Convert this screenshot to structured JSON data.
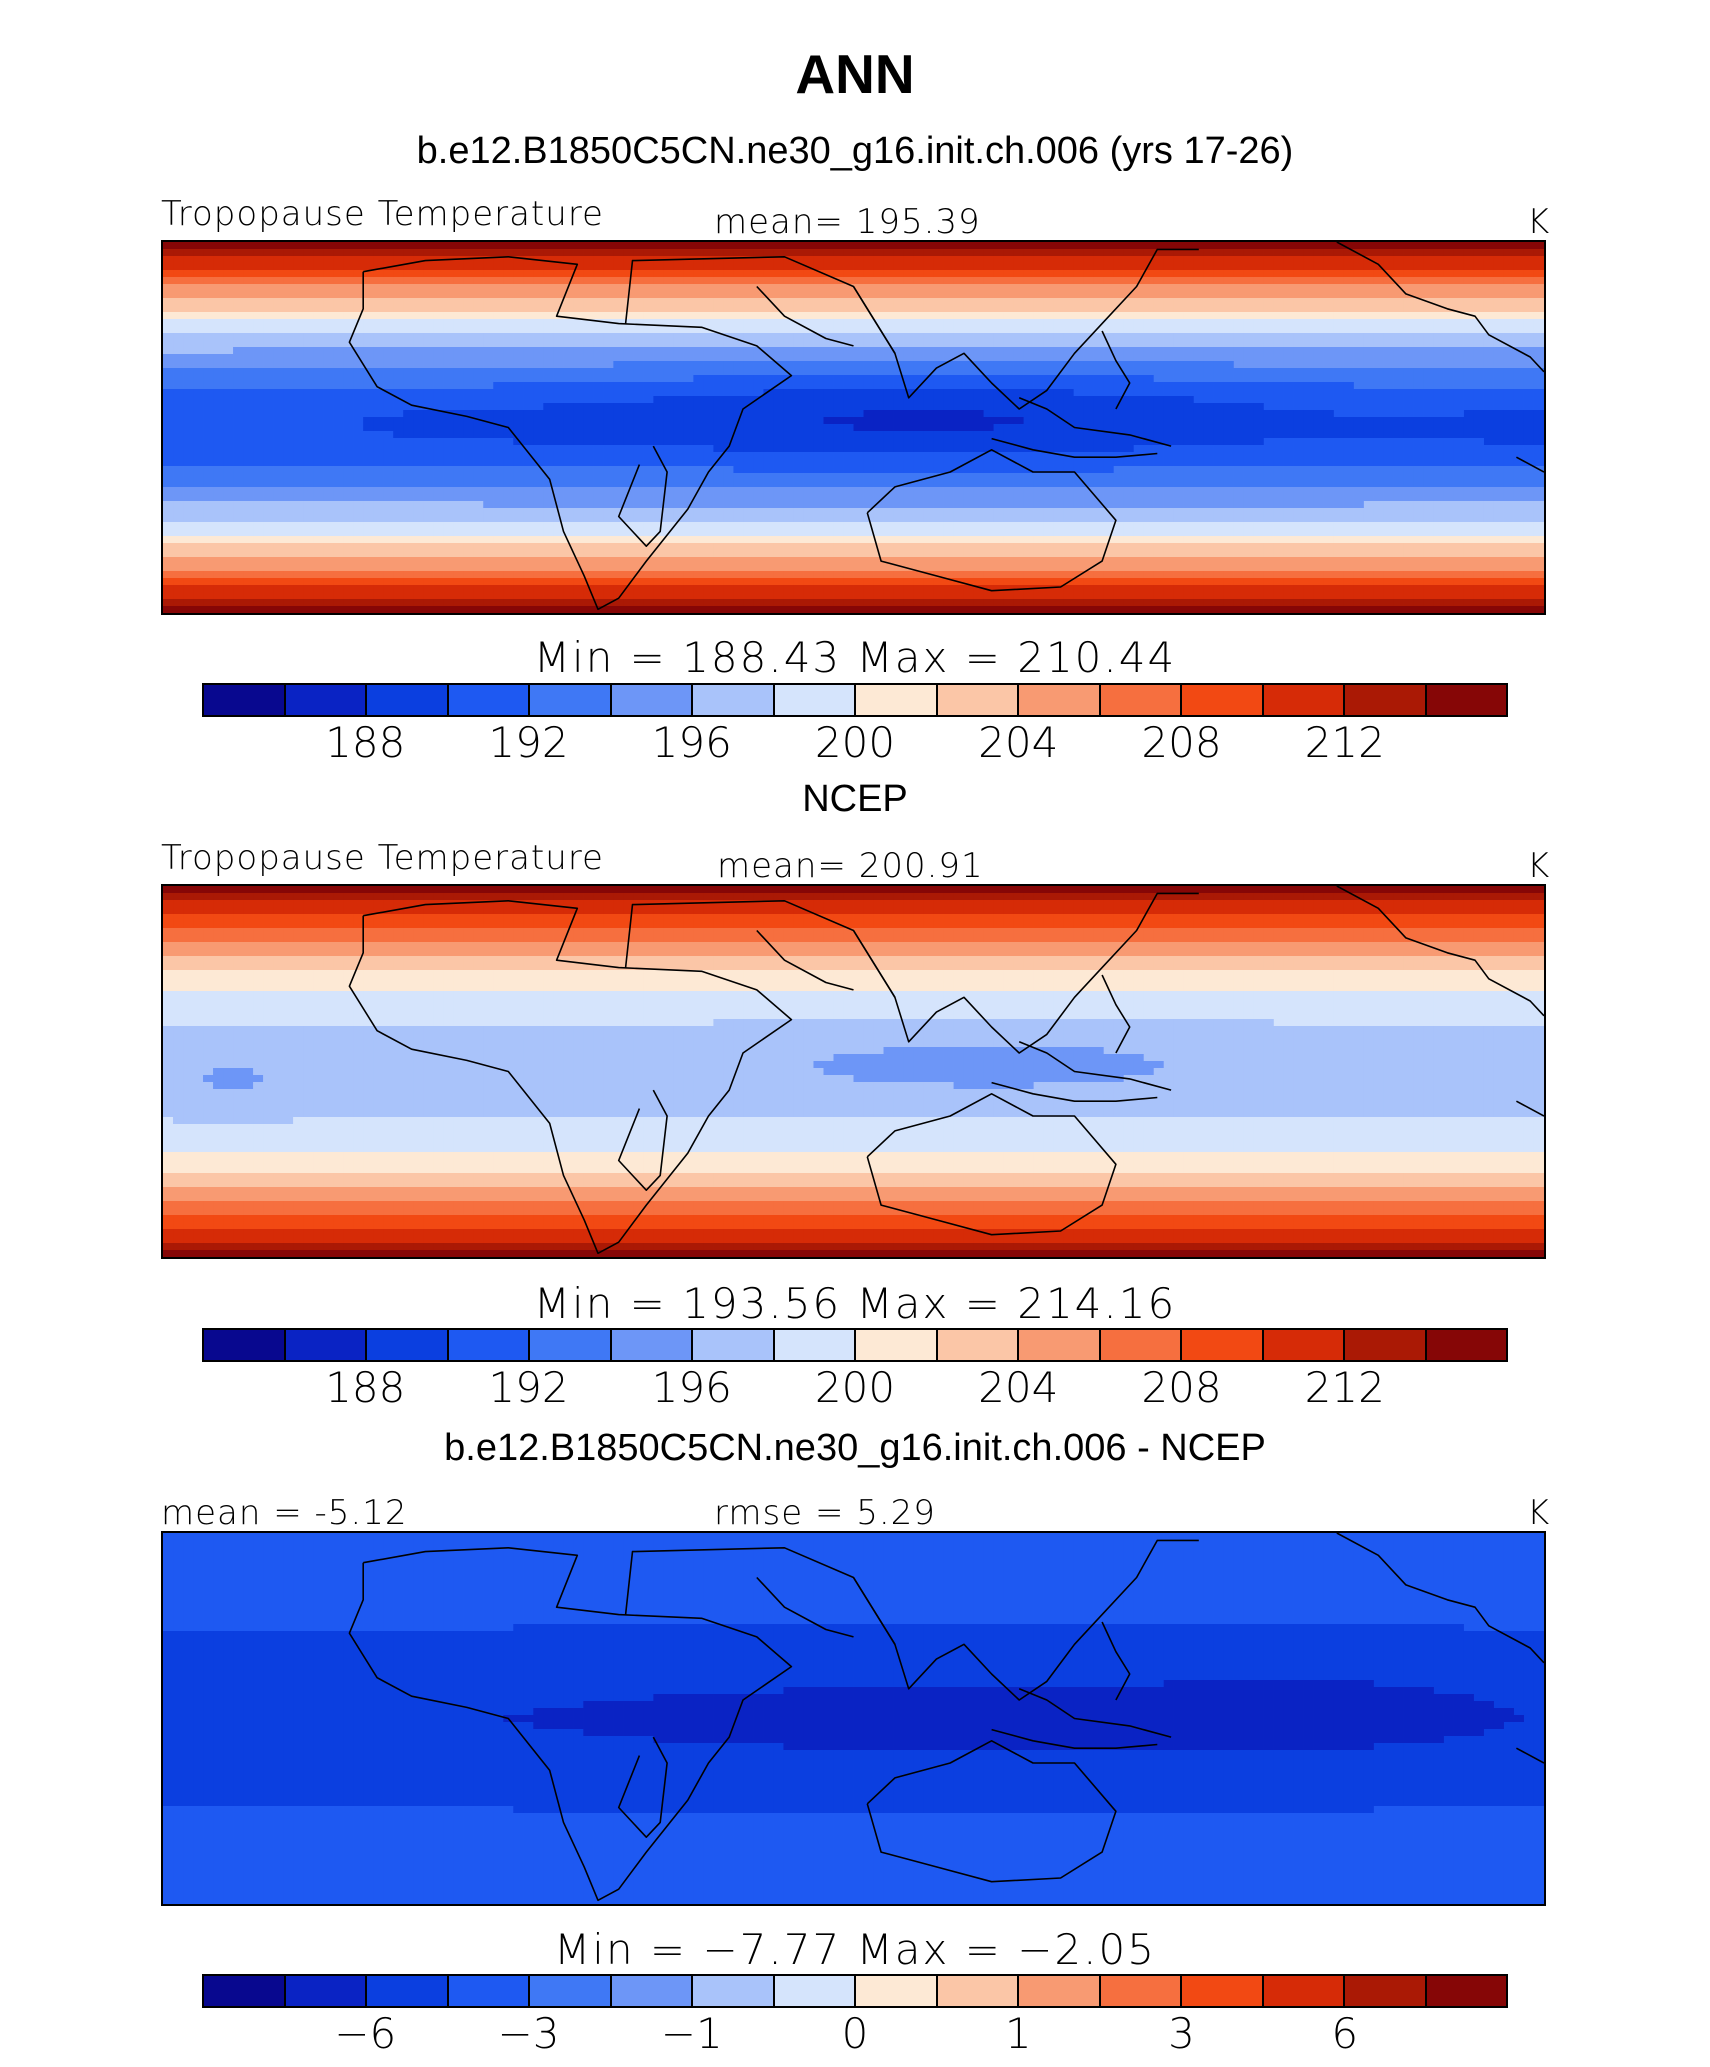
{
  "title": "ANN",
  "palette": [
    "#08088f",
    "#0a23c4",
    "#0b3fe0",
    "#1e59f2",
    "#3f78f5",
    "#6d96f7",
    "#a9c3fa",
    "#d5e4fc",
    "#fde9d5",
    "#fbc6a7",
    "#f89a72",
    "#f66f3f",
    "#f24913",
    "#d62b07",
    "#aa1905",
    "#860606"
  ],
  "panels": [
    {
      "subtitle": "b.e12.B1850C5CN.ne30_g16.init.ch.006 (yrs 17-26)",
      "left_label": "Tropopause Temperature",
      "center_label": "mean= 195.39",
      "units": "K",
      "minmax": "Min = 188.43 Max = 210.44",
      "ticks": [
        "188",
        "192",
        "196",
        "200",
        "204",
        "208",
        "212"
      ],
      "field": "model"
    },
    {
      "subtitle": "NCEP",
      "left_label": "Tropopause Temperature",
      "center_label": "mean= 200.91",
      "units": "K",
      "minmax": "Min = 193.56 Max = 214.16",
      "ticks": [
        "188",
        "192",
        "196",
        "200",
        "204",
        "208",
        "212"
      ],
      "field": "obs"
    },
    {
      "subtitle": "b.e12.B1850C5CN.ne30_g16.init.ch.006 - NCEP",
      "left_label": "mean = -5.12",
      "center_label": "rmse = 5.29",
      "units": "K",
      "minmax": "Min = −7.77 Max = −2.05",
      "ticks": [
        "−6",
        "−3",
        "−1",
        "0",
        "1",
        "3",
        "6"
      ],
      "field": "diff"
    }
  ]
}
